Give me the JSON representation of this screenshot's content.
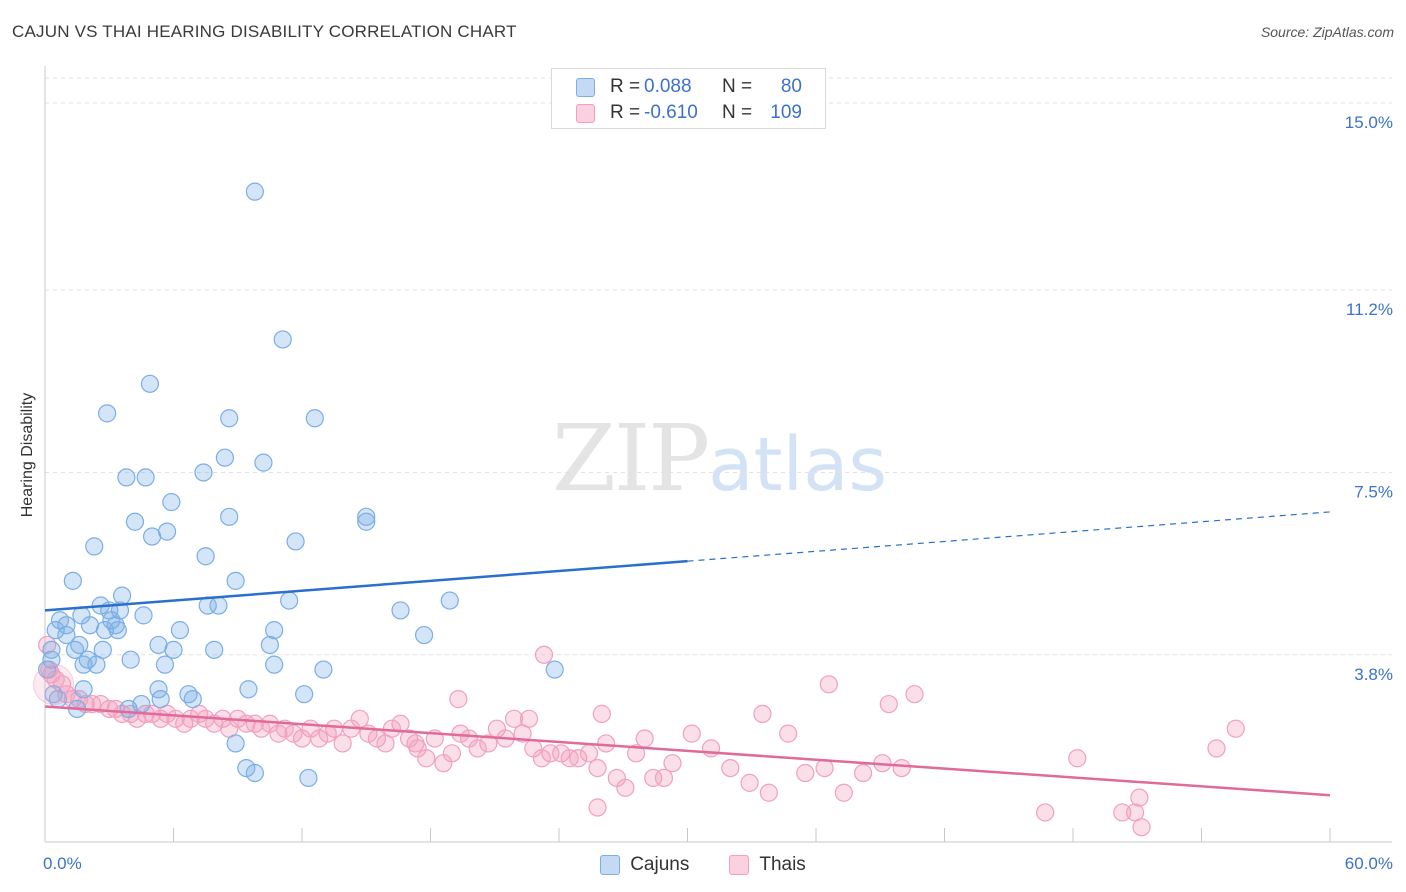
{
  "title": "CAJUN VS THAI HEARING DISABILITY CORRELATION CHART",
  "source": "Source: ZipAtlas.com",
  "watermark": {
    "zip": "ZIP",
    "atlas": "atlas"
  },
  "legend_top": {
    "rows": [
      {
        "r_label": "R =",
        "r_value": "0.088",
        "n_label": "N =",
        "n_value": "80"
      },
      {
        "r_label": "R =",
        "r_value": "-0.610",
        "n_label": "N =",
        "n_value": "109"
      }
    ]
  },
  "chart_data": {
    "type": "scatter",
    "title": "CAJUN VS THAI HEARING DISABILITY CORRELATION CHART",
    "xlabel": "",
    "ylabel": "Hearing Disability",
    "xlim": [
      0,
      60
    ],
    "ylim": [
      0,
      15.75
    ],
    "x_tick_labels": [
      "0.0%",
      "60.0%"
    ],
    "y_ticks": [
      3.8,
      7.5,
      11.2,
      15.0
    ],
    "y_tick_labels": [
      "3.8%",
      "7.5%",
      "11.2%",
      "15.0%"
    ],
    "grid": "horizontal dashed",
    "legend_position": "bottom-center",
    "colors": {
      "cajuns": "#7aaee6",
      "thais": "#f2a0bd",
      "cajuns_line": "#2a6fcc",
      "thais_line": "#e06a98"
    },
    "series": [
      {
        "name": "Cajuns",
        "r": 0.088,
        "n": 80,
        "trend": {
          "x0": 0,
          "y0": 4.7,
          "x1": 30,
          "y1": 5.7,
          "dashed_to_x": 60,
          "dashed_to_y": 6.7
        },
        "points": [
          [
            9.8,
            13.2
          ],
          [
            11.1,
            10.2
          ],
          [
            4.9,
            9.3
          ],
          [
            2.9,
            8.7
          ],
          [
            8.6,
            8.6
          ],
          [
            12.6,
            8.6
          ],
          [
            8.4,
            7.8
          ],
          [
            10.2,
            7.7
          ],
          [
            3.8,
            7.4
          ],
          [
            4.7,
            7.4
          ],
          [
            7.4,
            7.5
          ],
          [
            5.9,
            6.9
          ],
          [
            15.0,
            6.6
          ],
          [
            8.6,
            6.6
          ],
          [
            4.2,
            6.5
          ],
          [
            15.0,
            6.5
          ],
          [
            5.7,
            6.3
          ],
          [
            5.0,
            6.2
          ],
          [
            11.7,
            6.1
          ],
          [
            2.3,
            6.0
          ],
          [
            7.5,
            5.8
          ],
          [
            1.3,
            5.3
          ],
          [
            8.9,
            5.3
          ],
          [
            3.6,
            5.0
          ],
          [
            18.9,
            4.9
          ],
          [
            11.4,
            4.9
          ],
          [
            2.6,
            4.8
          ],
          [
            7.6,
            4.8
          ],
          [
            8.1,
            4.8
          ],
          [
            16.6,
            4.7
          ],
          [
            3.0,
            4.7
          ],
          [
            3.5,
            4.7
          ],
          [
            1.7,
            4.6
          ],
          [
            4.6,
            4.6
          ],
          [
            3.1,
            4.5
          ],
          [
            0.7,
            4.5
          ],
          [
            1.0,
            4.4
          ],
          [
            3.3,
            4.4
          ],
          [
            2.1,
            4.4
          ],
          [
            3.4,
            4.3
          ],
          [
            2.8,
            4.3
          ],
          [
            0.5,
            4.3
          ],
          [
            6.3,
            4.3
          ],
          [
            10.7,
            4.3
          ],
          [
            1.0,
            4.2
          ],
          [
            17.7,
            4.2
          ],
          [
            1.6,
            4.0
          ],
          [
            5.3,
            4.0
          ],
          [
            10.5,
            4.0
          ],
          [
            0.3,
            3.9
          ],
          [
            1.4,
            3.9
          ],
          [
            2.7,
            3.9
          ],
          [
            6.0,
            3.9
          ],
          [
            7.9,
            3.9
          ],
          [
            0.3,
            3.7
          ],
          [
            2.0,
            3.7
          ],
          [
            4.0,
            3.7
          ],
          [
            2.4,
            3.6
          ],
          [
            5.6,
            3.6
          ],
          [
            10.7,
            3.6
          ],
          [
            1.8,
            3.6
          ],
          [
            13.0,
            3.5
          ],
          [
            23.8,
            3.5
          ],
          [
            0.1,
            3.5
          ],
          [
            0.4,
            3.0
          ],
          [
            5.3,
            3.1
          ],
          [
            9.5,
            3.1
          ],
          [
            6.7,
            3.0
          ],
          [
            5.4,
            2.9
          ],
          [
            12.1,
            3.0
          ],
          [
            6.9,
            2.9
          ],
          [
            4.5,
            2.8
          ],
          [
            0.6,
            2.9
          ],
          [
            1.8,
            3.1
          ],
          [
            8.9,
            2.0
          ],
          [
            9.4,
            1.5
          ],
          [
            9.8,
            1.4
          ],
          [
            12.3,
            1.3
          ],
          [
            1.5,
            2.7
          ],
          [
            3.9,
            2.7
          ]
        ]
      },
      {
        "name": "Thais",
        "r": -0.61,
        "n": 109,
        "trend": {
          "x0": 0,
          "y0": 2.75,
          "x1": 60,
          "y1": 0.95
        },
        "points": [
          [
            0.2,
            3.5
          ],
          [
            0.3,
            3.4
          ],
          [
            0.5,
            3.3
          ],
          [
            0.8,
            3.2
          ],
          [
            1.0,
            3.0
          ],
          [
            1.3,
            2.9
          ],
          [
            1.6,
            2.9
          ],
          [
            1.9,
            2.8
          ],
          [
            2.2,
            2.8
          ],
          [
            2.6,
            2.8
          ],
          [
            3.0,
            2.7
          ],
          [
            3.3,
            2.7
          ],
          [
            3.6,
            2.6
          ],
          [
            4.0,
            2.6
          ],
          [
            4.3,
            2.5
          ],
          [
            4.7,
            2.6
          ],
          [
            5.0,
            2.6
          ],
          [
            5.4,
            2.5
          ],
          [
            5.7,
            2.6
          ],
          [
            6.1,
            2.5
          ],
          [
            6.5,
            2.4
          ],
          [
            6.8,
            2.5
          ],
          [
            7.2,
            2.6
          ],
          [
            7.5,
            2.5
          ],
          [
            7.9,
            2.4
          ],
          [
            8.3,
            2.5
          ],
          [
            8.6,
            2.3
          ],
          [
            9.0,
            2.5
          ],
          [
            9.4,
            2.4
          ],
          [
            9.8,
            2.4
          ],
          [
            10.1,
            2.3
          ],
          [
            10.5,
            2.4
          ],
          [
            10.9,
            2.2
          ],
          [
            11.2,
            2.3
          ],
          [
            11.6,
            2.2
          ],
          [
            12.0,
            2.1
          ],
          [
            12.4,
            2.3
          ],
          [
            12.8,
            2.1
          ],
          [
            13.2,
            2.2
          ],
          [
            13.5,
            2.3
          ],
          [
            13.9,
            2.0
          ],
          [
            14.3,
            2.3
          ],
          [
            14.7,
            2.5
          ],
          [
            15.1,
            2.2
          ],
          [
            15.5,
            2.1
          ],
          [
            15.9,
            2.0
          ],
          [
            16.2,
            2.3
          ],
          [
            16.6,
            2.4
          ],
          [
            17.0,
            2.1
          ],
          [
            17.4,
            1.9
          ],
          [
            17.8,
            1.7
          ],
          [
            18.2,
            2.1
          ],
          [
            18.6,
            1.6
          ],
          [
            19.0,
            1.8
          ],
          [
            19.4,
            2.2
          ],
          [
            19.8,
            2.1
          ],
          [
            20.2,
            1.9
          ],
          [
            20.7,
            2.0
          ],
          [
            21.1,
            2.3
          ],
          [
            21.5,
            2.1
          ],
          [
            21.9,
            2.5
          ],
          [
            22.3,
            2.2
          ],
          [
            22.8,
            1.9
          ],
          [
            23.2,
            1.7
          ],
          [
            23.6,
            1.8
          ],
          [
            24.1,
            1.8
          ],
          [
            24.5,
            1.7
          ],
          [
            24.9,
            1.7
          ],
          [
            25.4,
            1.8
          ],
          [
            25.8,
            1.5
          ],
          [
            26.2,
            2.0
          ],
          [
            26.7,
            1.3
          ],
          [
            27.1,
            1.1
          ],
          [
            27.6,
            1.8
          ],
          [
            28.0,
            2.1
          ],
          [
            28.4,
            1.3
          ],
          [
            28.9,
            1.3
          ],
          [
            29.3,
            1.6
          ],
          [
            30.2,
            2.2
          ],
          [
            31.1,
            1.9
          ],
          [
            32.0,
            1.5
          ],
          [
            32.9,
            1.2
          ],
          [
            33.8,
            1.0
          ],
          [
            34.7,
            2.2
          ],
          [
            35.5,
            1.4
          ],
          [
            36.4,
            1.5
          ],
          [
            37.3,
            1.0
          ],
          [
            38.2,
            1.4
          ],
          [
            39.1,
            1.6
          ],
          [
            40.0,
            1.5
          ],
          [
            26.0,
            2.6
          ],
          [
            22.6,
            2.5
          ],
          [
            19.3,
            2.9
          ],
          [
            17.3,
            2.0
          ],
          [
            25.8,
            0.7
          ],
          [
            33.5,
            2.6
          ],
          [
            36.6,
            3.2
          ],
          [
            39.4,
            2.8
          ],
          [
            40.6,
            3.0
          ],
          [
            46.7,
            0.6
          ],
          [
            48.2,
            1.7
          ],
          [
            50.3,
            0.6
          ],
          [
            50.9,
            0.6
          ],
          [
            51.1,
            0.9
          ],
          [
            51.2,
            0.3
          ],
          [
            54.7,
            1.9
          ],
          [
            55.6,
            2.3
          ],
          [
            23.3,
            3.8
          ],
          [
            0.1,
            4.0
          ]
        ]
      }
    ]
  },
  "bottom_legend": {
    "items": [
      "Cajuns",
      "Thais"
    ]
  }
}
